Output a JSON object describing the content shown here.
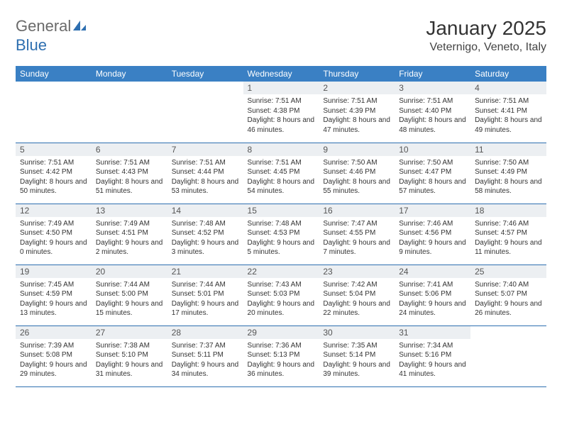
{
  "logo": {
    "general": "General",
    "blue": "Blue"
  },
  "title": "January 2025",
  "location": "Veternigo, Veneto, Italy",
  "colors": {
    "header_bg": "#3a80c4",
    "header_text": "#ffffff",
    "daynum_bg": "#eceff2",
    "border": "#2e6fb0",
    "logo_blue": "#2e6fb0"
  },
  "weekdays": [
    "Sunday",
    "Monday",
    "Tuesday",
    "Wednesday",
    "Thursday",
    "Friday",
    "Saturday"
  ],
  "weeks": [
    [
      null,
      null,
      null,
      {
        "n": "1",
        "sr": "7:51 AM",
        "ss": "4:38 PM",
        "dl": "8 hours and 46 minutes."
      },
      {
        "n": "2",
        "sr": "7:51 AM",
        "ss": "4:39 PM",
        "dl": "8 hours and 47 minutes."
      },
      {
        "n": "3",
        "sr": "7:51 AM",
        "ss": "4:40 PM",
        "dl": "8 hours and 48 minutes."
      },
      {
        "n": "4",
        "sr": "7:51 AM",
        "ss": "4:41 PM",
        "dl": "8 hours and 49 minutes."
      }
    ],
    [
      {
        "n": "5",
        "sr": "7:51 AM",
        "ss": "4:42 PM",
        "dl": "8 hours and 50 minutes."
      },
      {
        "n": "6",
        "sr": "7:51 AM",
        "ss": "4:43 PM",
        "dl": "8 hours and 51 minutes."
      },
      {
        "n": "7",
        "sr": "7:51 AM",
        "ss": "4:44 PM",
        "dl": "8 hours and 53 minutes."
      },
      {
        "n": "8",
        "sr": "7:51 AM",
        "ss": "4:45 PM",
        "dl": "8 hours and 54 minutes."
      },
      {
        "n": "9",
        "sr": "7:50 AM",
        "ss": "4:46 PM",
        "dl": "8 hours and 55 minutes."
      },
      {
        "n": "10",
        "sr": "7:50 AM",
        "ss": "4:47 PM",
        "dl": "8 hours and 57 minutes."
      },
      {
        "n": "11",
        "sr": "7:50 AM",
        "ss": "4:49 PM",
        "dl": "8 hours and 58 minutes."
      }
    ],
    [
      {
        "n": "12",
        "sr": "7:49 AM",
        "ss": "4:50 PM",
        "dl": "9 hours and 0 minutes."
      },
      {
        "n": "13",
        "sr": "7:49 AM",
        "ss": "4:51 PM",
        "dl": "9 hours and 2 minutes."
      },
      {
        "n": "14",
        "sr": "7:48 AM",
        "ss": "4:52 PM",
        "dl": "9 hours and 3 minutes."
      },
      {
        "n": "15",
        "sr": "7:48 AM",
        "ss": "4:53 PM",
        "dl": "9 hours and 5 minutes."
      },
      {
        "n": "16",
        "sr": "7:47 AM",
        "ss": "4:55 PM",
        "dl": "9 hours and 7 minutes."
      },
      {
        "n": "17",
        "sr": "7:46 AM",
        "ss": "4:56 PM",
        "dl": "9 hours and 9 minutes."
      },
      {
        "n": "18",
        "sr": "7:46 AM",
        "ss": "4:57 PM",
        "dl": "9 hours and 11 minutes."
      }
    ],
    [
      {
        "n": "19",
        "sr": "7:45 AM",
        "ss": "4:59 PM",
        "dl": "9 hours and 13 minutes."
      },
      {
        "n": "20",
        "sr": "7:44 AM",
        "ss": "5:00 PM",
        "dl": "9 hours and 15 minutes."
      },
      {
        "n": "21",
        "sr": "7:44 AM",
        "ss": "5:01 PM",
        "dl": "9 hours and 17 minutes."
      },
      {
        "n": "22",
        "sr": "7:43 AM",
        "ss": "5:03 PM",
        "dl": "9 hours and 20 minutes."
      },
      {
        "n": "23",
        "sr": "7:42 AM",
        "ss": "5:04 PM",
        "dl": "9 hours and 22 minutes."
      },
      {
        "n": "24",
        "sr": "7:41 AM",
        "ss": "5:06 PM",
        "dl": "9 hours and 24 minutes."
      },
      {
        "n": "25",
        "sr": "7:40 AM",
        "ss": "5:07 PM",
        "dl": "9 hours and 26 minutes."
      }
    ],
    [
      {
        "n": "26",
        "sr": "7:39 AM",
        "ss": "5:08 PM",
        "dl": "9 hours and 29 minutes."
      },
      {
        "n": "27",
        "sr": "7:38 AM",
        "ss": "5:10 PM",
        "dl": "9 hours and 31 minutes."
      },
      {
        "n": "28",
        "sr": "7:37 AM",
        "ss": "5:11 PM",
        "dl": "9 hours and 34 minutes."
      },
      {
        "n": "29",
        "sr": "7:36 AM",
        "ss": "5:13 PM",
        "dl": "9 hours and 36 minutes."
      },
      {
        "n": "30",
        "sr": "7:35 AM",
        "ss": "5:14 PM",
        "dl": "9 hours and 39 minutes."
      },
      {
        "n": "31",
        "sr": "7:34 AM",
        "ss": "5:16 PM",
        "dl": "9 hours and 41 minutes."
      },
      null
    ]
  ],
  "labels": {
    "sunrise": "Sunrise:",
    "sunset": "Sunset:",
    "daylight": "Daylight:"
  }
}
